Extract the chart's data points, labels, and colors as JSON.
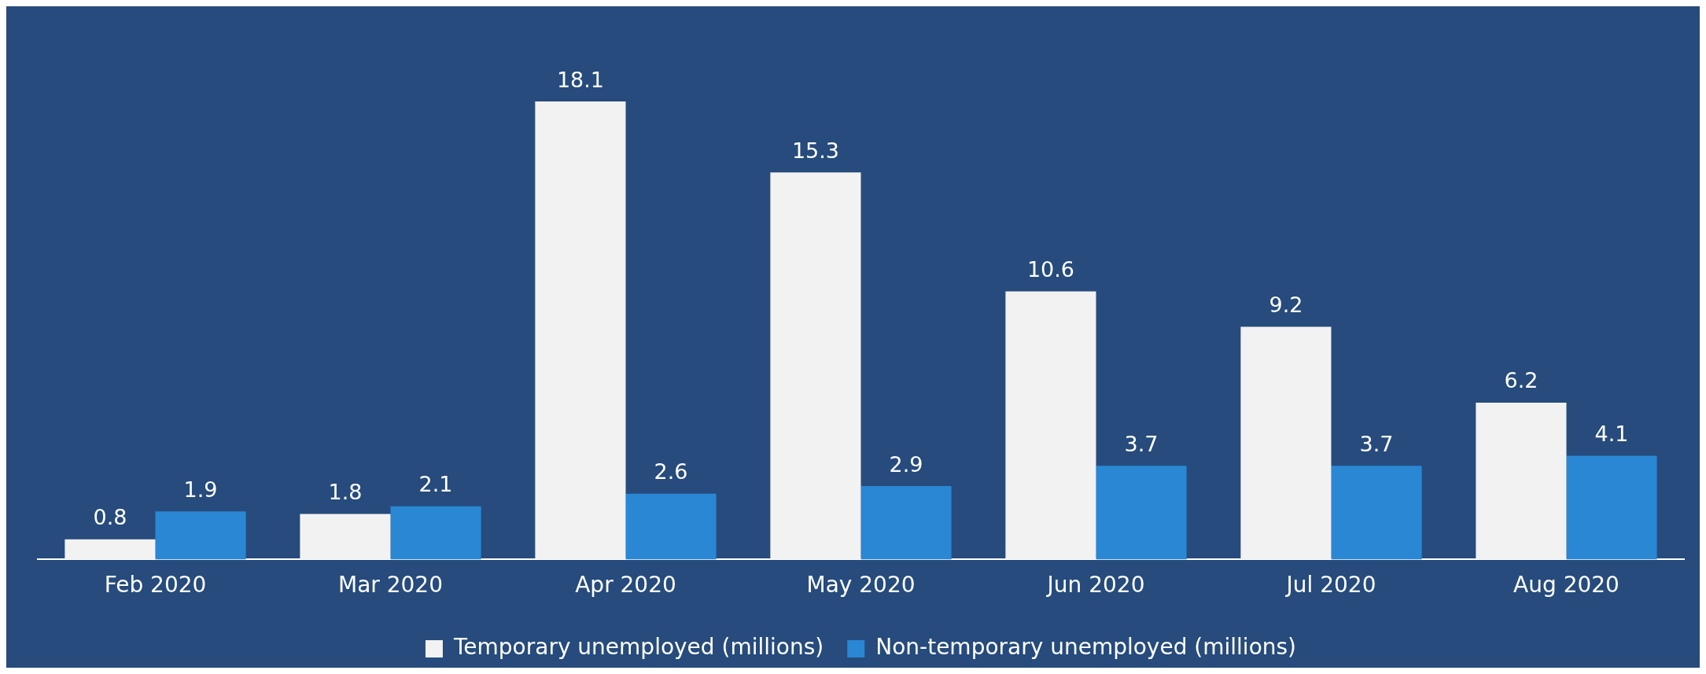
{
  "chart_data": {
    "type": "bar",
    "categories": [
      "Feb 2020",
      "Mar 2020",
      "Apr 2020",
      "May 2020",
      "Jun 2020",
      "Jul 2020",
      "Aug 2020"
    ],
    "series": [
      {
        "name": "Temporary unemployed (millions)",
        "color": "#f2f2f2",
        "values": [
          0.8,
          1.8,
          18.1,
          15.3,
          10.6,
          9.2,
          6.2
        ]
      },
      {
        "name": "Non-temporary unemployed (millions)",
        "color": "#2a87d4",
        "values": [
          1.9,
          2.1,
          2.6,
          2.9,
          3.7,
          3.7,
          4.1
        ]
      }
    ],
    "data_labels": true,
    "legend": "bottom",
    "grid": false,
    "tick_labels": "x"
  }
}
